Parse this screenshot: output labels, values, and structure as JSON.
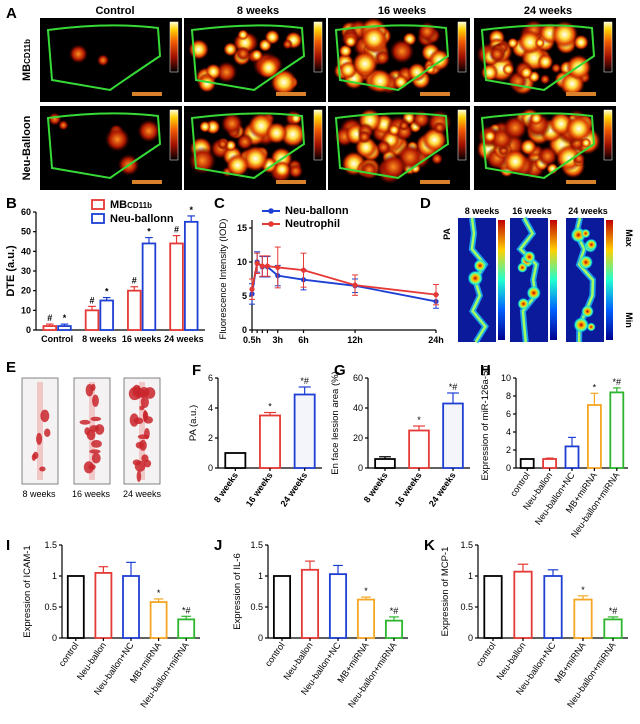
{
  "panel_labels": [
    "A",
    "B",
    "C",
    "D",
    "E",
    "F",
    "G",
    "H",
    "I",
    "J",
    "K"
  ],
  "panelA": {
    "columns": [
      "Control",
      "8 weeks",
      "16 weeks",
      "24 weeks"
    ],
    "row1_main": "MB",
    "row1_sub": "CD11b",
    "row2": "Neu-Balloon"
  },
  "panelD": {
    "labels": [
      "8 weeks",
      "16 weeks",
      "24 weeks"
    ],
    "side": "PA",
    "max": "Max",
    "min": "Min"
  },
  "panelE": {
    "labels": [
      "8 weeks",
      "16 weeks",
      "24 weeks"
    ]
  },
  "chart_data": [
    {
      "id": "B",
      "type": "bar",
      "categories": [
        "Control",
        "8 weeks",
        "16 weeks",
        "24 weeks"
      ],
      "series": [
        {
          "name": "MB",
          "name_sub": "CD11b",
          "values": [
            2,
            10,
            20,
            44
          ],
          "err": [
            1,
            2,
            2,
            4
          ],
          "marks": [
            "#",
            "#",
            "#",
            "#"
          ],
          "color": "#e53935"
        },
        {
          "name": "Neu-ballonn",
          "values": [
            2,
            15,
            44,
            55
          ],
          "err": [
            1,
            1.5,
            3,
            3
          ],
          "marks": [
            "*",
            "*",
            "*",
            "*"
          ],
          "color": "#1e3fd4"
        }
      ],
      "ylabel": "DTE (a.u.)",
      "ylim": [
        0,
        60
      ],
      "yticks": [
        0,
        10,
        20,
        30,
        40,
        50,
        60
      ]
    },
    {
      "id": "C",
      "type": "line",
      "xticklabels": [
        "0.5h",
        "3h",
        "6h",
        "12h",
        "24h"
      ],
      "xtickvals": [
        0.5,
        3,
        6,
        12,
        24
      ],
      "series": [
        {
          "name": "Neu-ballonn",
          "color": "#1e3fd4",
          "points": [
            [
              0.5,
              5.3
            ],
            [
              1,
              10
            ],
            [
              1.5,
              9.3
            ],
            [
              2,
              9.3
            ],
            [
              3,
              8
            ],
            [
              6,
              7.4
            ],
            [
              12,
              6.5
            ],
            [
              24,
              4.2
            ]
          ],
          "err": [
            1.5,
            1.5,
            1.5,
            1.5,
            1.5,
            1.5,
            1,
            1
          ]
        },
        {
          "name": "Neutrophil",
          "color": "#e53935",
          "points": [
            [
              0.5,
              6
            ],
            [
              1,
              9.8
            ],
            [
              1.5,
              9.4
            ],
            [
              2,
              9.4
            ],
            [
              3,
              9.2
            ],
            [
              6,
              8.8
            ],
            [
              12,
              6.6
            ],
            [
              24,
              5.2
            ]
          ],
          "err": [
            1.5,
            1.5,
            1.5,
            1.5,
            3,
            2.5,
            1.5,
            1.5
          ]
        }
      ],
      "ylabel": "Fluorescence Intensity (IOD)",
      "ylim": [
        0,
        15
      ],
      "yticks": [
        0,
        5,
        10,
        15
      ]
    },
    {
      "id": "F",
      "type": "bar",
      "categories": [
        "8 weeks",
        "16 weeks",
        "24 weeks"
      ],
      "values": [
        1,
        3.5,
        4.9
      ],
      "err": [
        0,
        0.2,
        0.5
      ],
      "marks": [
        "",
        "*",
        "*#"
      ],
      "colors": [
        "#000000",
        "#e53935",
        "#1e3fd4"
      ],
      "ylabel": "PA (a.u.)",
      "ylim": [
        0,
        6
      ],
      "yticks": [
        0,
        2,
        4,
        6
      ]
    },
    {
      "id": "G",
      "type": "bar",
      "categories": [
        "8 weeks",
        "16 weeks",
        "24 weeks"
      ],
      "values": [
        6,
        25,
        43
      ],
      "err": [
        1.5,
        3,
        7
      ],
      "marks": [
        "",
        "*",
        "*#"
      ],
      "colors": [
        "#000000",
        "#e53935",
        "#1e3fd4"
      ],
      "ylabel": "En face lession area (%)",
      "ylim": [
        0,
        60
      ],
      "yticks": [
        0,
        20,
        40,
        60
      ]
    },
    {
      "id": "H",
      "type": "bar",
      "categories": [
        "control",
        "Neu-ballon",
        "Neu-ballon+NC",
        "MB+miRNA",
        "Neu-ballon+miRNA"
      ],
      "values": [
        1,
        1,
        2.4,
        7,
        8.4
      ],
      "err": [
        0,
        0.1,
        1,
        1.3,
        0.5
      ],
      "marks": [
        "",
        "",
        "",
        "*",
        "*#"
      ],
      "colors": [
        "#000000",
        "#e53935",
        "#1e3fd4",
        "#f5a623",
        "#2db52d"
      ],
      "ylabel": "Expression of miR-126a-5p",
      "ylim": [
        0,
        10
      ],
      "yticks": [
        0,
        2,
        4,
        6,
        8,
        10
      ]
    },
    {
      "id": "I",
      "type": "bar",
      "categories": [
        "control",
        "Neu-ballon",
        "Neu-ballon+NC",
        "MB+miRNA",
        "Neu-ballon+miRNA"
      ],
      "values": [
        1,
        1.05,
        1,
        0.58,
        0.3
      ],
      "err": [
        0,
        0.1,
        0.22,
        0.05,
        0.05
      ],
      "marks": [
        "",
        "",
        "",
        "*",
        "*#"
      ],
      "colors": [
        "#000000",
        "#e53935",
        "#1e3fd4",
        "#f5a623",
        "#2db52d"
      ],
      "ylabel": "Expression of ICAM-1",
      "ylim": [
        0,
        1.5
      ],
      "yticks": [
        0,
        0.5,
        1,
        1.5
      ]
    },
    {
      "id": "J",
      "type": "bar",
      "categories": [
        "control",
        "Neu-ballon",
        "Neu-ballon+NC",
        "MB+miRNA",
        "Neu-ballon+miRNA"
      ],
      "values": [
        1,
        1.1,
        1.03,
        0.62,
        0.28
      ],
      "err": [
        0,
        0.14,
        0.14,
        0.04,
        0.06
      ],
      "marks": [
        "",
        "",
        "",
        "*",
        "*#"
      ],
      "colors": [
        "#000000",
        "#e53935",
        "#1e3fd4",
        "#f5a623",
        "#2db52d"
      ],
      "ylabel": "Expression of IL-6",
      "ylim": [
        0,
        1.5
      ],
      "yticks": [
        0,
        0.5,
        1,
        1.5
      ]
    },
    {
      "id": "K",
      "type": "bar",
      "categories": [
        "control",
        "Neu-ballon",
        "Neu-ballon+NC",
        "MB+miRNA",
        "Neu-ballon+miRNA"
      ],
      "values": [
        1,
        1.07,
        1,
        0.62,
        0.3
      ],
      "err": [
        0,
        0.12,
        0.1,
        0.06,
        0.04
      ],
      "marks": [
        "",
        "",
        "",
        "*",
        "*#"
      ],
      "colors": [
        "#000000",
        "#e53935",
        "#1e3fd4",
        "#f5a623",
        "#2db52d"
      ],
      "ylabel": "Expression of MCP-1",
      "ylim": [
        0,
        1.5
      ],
      "yticks": [
        0,
        0.5,
        1,
        1.5
      ]
    }
  ]
}
